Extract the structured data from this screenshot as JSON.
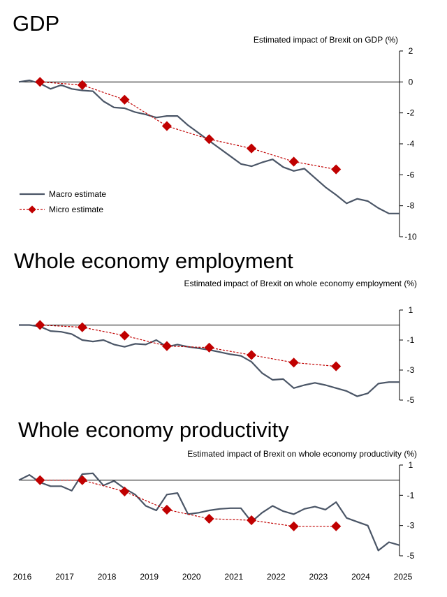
{
  "chart_data": [
    {
      "type": "line",
      "title": "GDP",
      "ylabel": "Estimated impact of Brexit on GDP (%)",
      "ylim": [
        -10,
        2
      ],
      "yticks": [
        2,
        0,
        -2,
        -4,
        -6,
        -8,
        -10
      ],
      "xlim": [
        2016,
        2025
      ],
      "legend": {
        "position": "left",
        "macro_label": "Macro estimate",
        "micro_label": "Micro estimate"
      },
      "series": [
        {
          "name": "Macro estimate",
          "x": [
            2016.0,
            2016.25,
            2016.5,
            2016.75,
            2017.0,
            2017.25,
            2017.5,
            2017.75,
            2018.0,
            2018.25,
            2018.5,
            2018.75,
            2019.0,
            2019.25,
            2019.5,
            2019.75,
            2020.0,
            2020.25,
            2020.5,
            2020.75,
            2021.0,
            2021.25,
            2021.5,
            2021.75,
            2022.0,
            2022.25,
            2022.5,
            2022.75,
            2023.0,
            2023.25,
            2023.5,
            2023.75,
            2024.0,
            2024.25,
            2024.5,
            2024.75,
            2025.0
          ],
          "values": [
            0.0,
            0.1,
            -0.1,
            -0.45,
            -0.2,
            -0.45,
            -0.55,
            -0.6,
            -1.25,
            -1.65,
            -1.7,
            -1.95,
            -2.1,
            -2.3,
            -2.2,
            -2.2,
            -2.8,
            -3.3,
            -3.8,
            -4.3,
            -4.8,
            -5.3,
            -5.45,
            -5.2,
            -5.0,
            -5.5,
            -5.75,
            -5.6,
            -6.2,
            -6.8,
            -7.3,
            -7.85,
            -7.55,
            -7.7,
            -8.15,
            -8.5,
            -8.5
          ]
        },
        {
          "name": "Micro estimate",
          "x": [
            2016.5,
            2017.5,
            2018.5,
            2019.5,
            2020.5,
            2021.5,
            2022.5,
            2023.5
          ],
          "values": [
            0.0,
            -0.2,
            -1.15,
            -2.85,
            -3.7,
            -4.3,
            -5.15,
            -5.65
          ]
        }
      ]
    },
    {
      "type": "line",
      "title": "Whole economy employment",
      "ylabel": "Estimated impact of Brexit on whole economy employment (%)",
      "ylim": [
        -5,
        1
      ],
      "yticks": [
        1,
        -1,
        -3,
        -5
      ],
      "xlim": [
        2016,
        2025
      ],
      "series": [
        {
          "name": "Macro estimate",
          "x": [
            2016.0,
            2016.25,
            2016.5,
            2016.75,
            2017.0,
            2017.25,
            2017.5,
            2017.75,
            2018.0,
            2018.25,
            2018.5,
            2018.75,
            2019.0,
            2019.25,
            2019.5,
            2019.75,
            2020.0,
            2020.25,
            2020.5,
            2020.75,
            2021.0,
            2021.25,
            2021.5,
            2021.75,
            2022.0,
            2022.25,
            2022.5,
            2022.75,
            2023.0,
            2023.25,
            2023.5,
            2023.75,
            2024.0,
            2024.25,
            2024.5,
            2024.75,
            2025.0
          ],
          "values": [
            0.0,
            0.0,
            -0.1,
            -0.4,
            -0.45,
            -0.6,
            -1.0,
            -1.1,
            -1.0,
            -1.3,
            -1.45,
            -1.25,
            -1.3,
            -1.0,
            -1.45,
            -1.3,
            -1.45,
            -1.55,
            -1.65,
            -1.8,
            -1.95,
            -2.05,
            -2.45,
            -3.2,
            -3.65,
            -3.6,
            -4.2,
            -4.0,
            -3.85,
            -4.0,
            -4.2,
            -4.4,
            -4.75,
            -4.55,
            -3.9,
            -3.8,
            -3.8
          ]
        },
        {
          "name": "Micro estimate",
          "x": [
            2016.5,
            2017.5,
            2018.5,
            2019.5,
            2020.5,
            2021.5,
            2022.5,
            2023.5
          ],
          "values": [
            0.0,
            -0.15,
            -0.7,
            -1.4,
            -1.5,
            -2.0,
            -2.5,
            -2.75
          ]
        }
      ]
    },
    {
      "type": "line",
      "title": "Whole economy productivity",
      "ylabel": "Estimated impact of Brexit on whole economy productivity (%)",
      "ylim": [
        -5,
        1
      ],
      "yticks": [
        1,
        -1,
        -3,
        -5
      ],
      "xlim": [
        2016,
        2025
      ],
      "xticks": [
        "2016",
        "2017",
        "2018",
        "2019",
        "2020",
        "2021",
        "2022",
        "2023",
        "2024",
        "2025"
      ],
      "series": [
        {
          "name": "Macro estimate",
          "x": [
            2016.0,
            2016.25,
            2016.5,
            2016.75,
            2017.0,
            2017.25,
            2017.5,
            2017.75,
            2018.0,
            2018.25,
            2018.5,
            2018.75,
            2019.0,
            2019.25,
            2019.5,
            2019.75,
            2020.0,
            2020.25,
            2020.5,
            2020.75,
            2021.0,
            2021.25,
            2021.5,
            2021.75,
            2022.0,
            2022.25,
            2022.5,
            2022.75,
            2023.0,
            2023.25,
            2023.5,
            2023.75,
            2024.0,
            2024.25,
            2024.5,
            2024.75,
            2025.0
          ],
          "values": [
            0.0,
            0.35,
            -0.15,
            -0.4,
            -0.4,
            -0.7,
            0.4,
            0.45,
            -0.35,
            -0.05,
            -0.55,
            -0.95,
            -1.7,
            -2.0,
            -0.95,
            -0.85,
            -2.25,
            -2.15,
            -2.0,
            -1.9,
            -1.85,
            -1.85,
            -2.75,
            -2.15,
            -1.7,
            -2.05,
            -2.25,
            -1.9,
            -1.75,
            -1.95,
            -1.45,
            -2.5,
            -2.75,
            -3.0,
            -4.65,
            -4.1,
            -4.3
          ]
        },
        {
          "name": "Micro estimate",
          "x": [
            2016.5,
            2017.5,
            2018.5,
            2019.5,
            2020.5,
            2021.5,
            2022.5,
            2023.5
          ],
          "values": [
            0.0,
            0.0,
            -0.75,
            -1.95,
            -2.55,
            -2.65,
            -3.05,
            -3.05
          ]
        }
      ]
    }
  ],
  "colors": {
    "macro": "#4a5566",
    "micro": "#c00000",
    "axis": "#000000"
  }
}
